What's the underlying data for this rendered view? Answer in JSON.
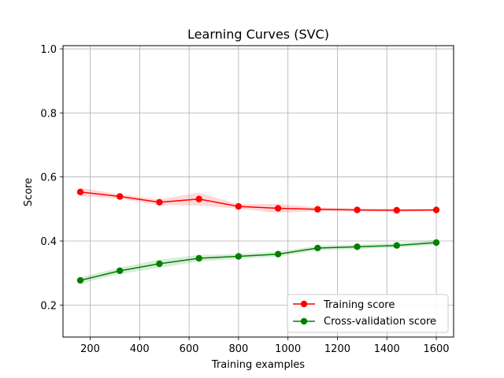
{
  "chart_data": {
    "type": "line",
    "title": "Learning Curves (SVC)",
    "xlabel": "Training examples",
    "ylabel": "Score",
    "xlim": [
      90,
      1670
    ],
    "ylim": [
      0.1,
      1.01
    ],
    "xticks": [
      200,
      400,
      600,
      800,
      1000,
      1200,
      1400,
      1600
    ],
    "yticks": [
      0.2,
      0.4,
      0.6,
      0.8,
      1.0
    ],
    "ytick_labels": [
      "0.2",
      "0.4",
      "0.6",
      "0.8",
      "1.0"
    ],
    "grid": true,
    "legend_position": "lower-right",
    "x": [
      160,
      320,
      480,
      640,
      800,
      960,
      1120,
      1280,
      1440,
      1600
    ],
    "series": [
      {
        "name": "Training score",
        "color": "#ff0000",
        "fill_color": "#ff0000",
        "values": [
          0.553,
          0.539,
          0.521,
          0.531,
          0.508,
          0.502,
          0.499,
          0.497,
          0.496,
          0.497
        ],
        "lower": [
          0.54,
          0.532,
          0.512,
          0.511,
          0.501,
          0.488,
          0.493,
          0.492,
          0.491,
          0.493
        ],
        "upper": [
          0.566,
          0.546,
          0.53,
          0.551,
          0.515,
          0.516,
          0.505,
          0.502,
          0.501,
          0.501
        ]
      },
      {
        "name": "Cross-validation score",
        "color": "#008000",
        "fill_color": "#008000",
        "values": [
          0.277,
          0.307,
          0.329,
          0.346,
          0.352,
          0.359,
          0.378,
          0.382,
          0.386,
          0.395
        ],
        "lower": [
          0.267,
          0.297,
          0.316,
          0.336,
          0.344,
          0.351,
          0.371,
          0.375,
          0.379,
          0.387
        ],
        "upper": [
          0.287,
          0.317,
          0.342,
          0.356,
          0.36,
          0.367,
          0.385,
          0.389,
          0.393,
          0.403
        ]
      }
    ]
  }
}
